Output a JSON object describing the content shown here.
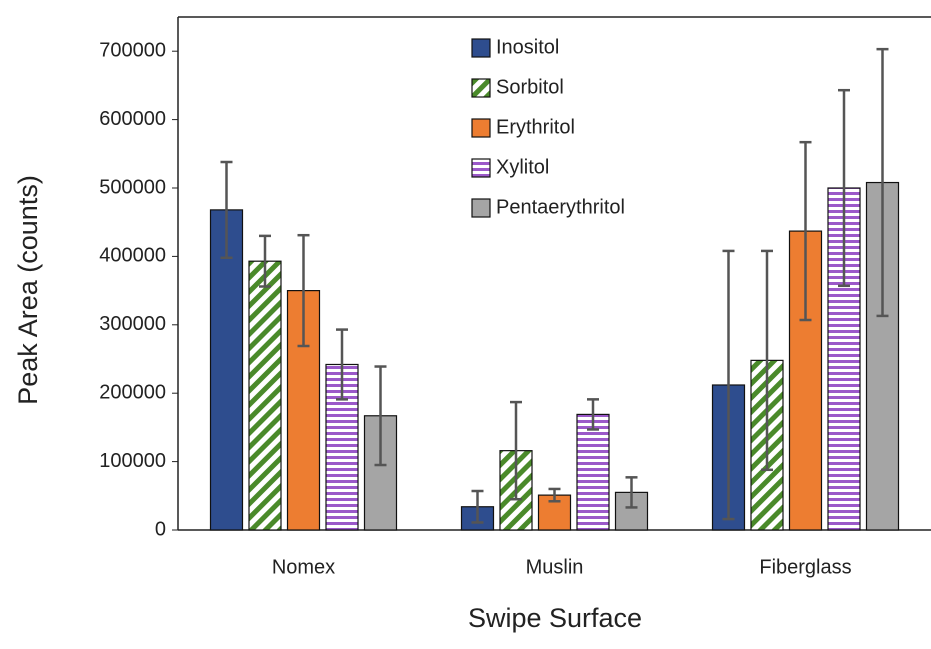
{
  "chart_data": {
    "type": "bar",
    "x_label": "Swipe Surface",
    "y_label": "Peak Area (counts)",
    "categories": [
      "Nomex",
      "Muslin",
      "Fiberglass"
    ],
    "series": [
      {
        "name": "Inositol",
        "color": "#2e4d8e",
        "pattern": "solid",
        "values": [
          468000,
          34000,
          212000
        ],
        "errors": [
          70000,
          23000,
          196000
        ]
      },
      {
        "name": "Sorbitol",
        "color": "#4a8a2a",
        "pattern": "diagonal",
        "values": [
          393000,
          116000,
          248000
        ],
        "errors": [
          37000,
          71000,
          160000
        ]
      },
      {
        "name": "Erythritol",
        "color": "#ed7d31",
        "pattern": "solid",
        "values": [
          350000,
          51000,
          437000
        ],
        "errors": [
          81000,
          9000,
          130000
        ]
      },
      {
        "name": "Xylitol",
        "color": "#9b59c9",
        "pattern": "horizontal",
        "values": [
          242000,
          169000,
          500000
        ],
        "errors": [
          51000,
          22000,
          143000
        ]
      },
      {
        "name": "Pentaerythritol",
        "color": "#a5a5a5",
        "pattern": "solid",
        "values": [
          167000,
          55000,
          508000
        ],
        "errors": [
          72000,
          22000,
          195000
        ]
      }
    ],
    "ylim": [
      0,
      750000
    ],
    "yticks": [
      0,
      100000,
      200000,
      300000,
      400000,
      500000,
      600000,
      700000
    ],
    "grid": false,
    "legend_position": "top-center",
    "error_bar_color": "#555555"
  }
}
